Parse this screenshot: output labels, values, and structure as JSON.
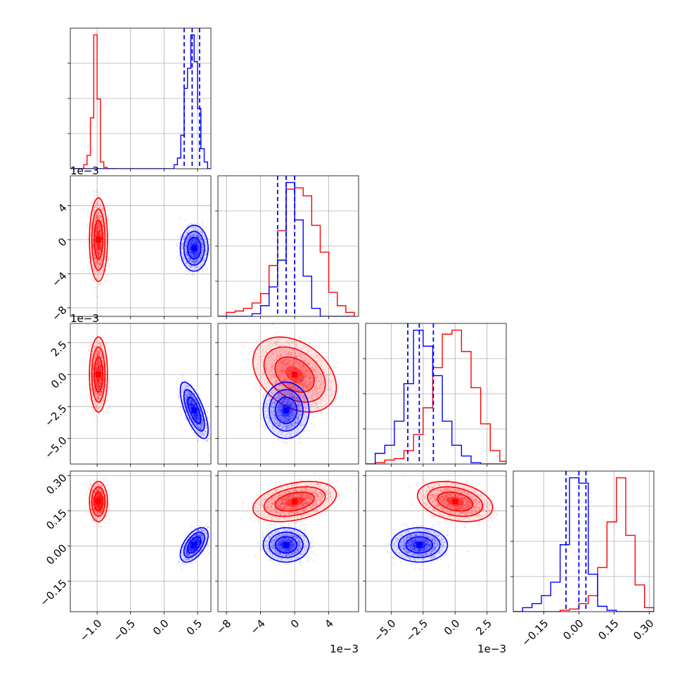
{
  "chart_data": {
    "type": "scatter",
    "subtype": "corner-plot",
    "title": "",
    "grid": true,
    "legend": "none",
    "colors": {
      "series_a": "#ff0000",
      "series_b": "#0000ff"
    },
    "parameters": [
      {
        "key": "p1",
        "range": [
          -1.4,
          0.7
        ],
        "ticks": [
          -1.0,
          -0.5,
          0.0,
          0.5
        ],
        "tick_labels": [
          "−1.0",
          "−0.5",
          "0.0",
          "0.5"
        ],
        "offset_label": ""
      },
      {
        "key": "p2",
        "range": [
          -9.0,
          7.5
        ],
        "ticks": [
          -8,
          -4,
          0,
          4
        ],
        "tick_labels": [
          "−8",
          "−4",
          "0",
          "4"
        ],
        "offset_label": "1e−3"
      },
      {
        "key": "p3",
        "range": [
          -7.0,
          4.0
        ],
        "ticks": [
          -5.0,
          -2.5,
          0.0,
          2.5
        ],
        "tick_labels": [
          "−5.0",
          "−2.5",
          "0.0",
          "2.5"
        ],
        "offset_label": "1e−3"
      },
      {
        "key": "p4",
        "range": [
          -0.28,
          0.32
        ],
        "ticks": [
          -0.15,
          0.0,
          0.15,
          0.3
        ],
        "tick_labels": [
          "−0.15",
          "0.00",
          "0.15",
          "0.30"
        ],
        "offset_label": ""
      }
    ],
    "series": [
      {
        "color": "#ff0000",
        "mean": [
          -0.98,
          0.0,
          0.0,
          0.19
        ],
        "sd": [
          0.055,
          2.0,
          1.2,
          0.035
        ],
        "corr": {
          "1-2": 0.0,
          "1-3": 0.0,
          "1-4": 0.0,
          "2-3": -0.35,
          "2-4": 0.35,
          "3-4": -0.3
        },
        "hist": [
          {
            "edges": [
              -1.4,
              -1.35,
              -1.3,
              -1.25,
              -1.2,
              -1.15,
              -1.1,
              -1.05,
              -1.0,
              -0.95,
              -0.9,
              -0.85,
              -0.8,
              -0.75,
              -0.7
            ],
            "counts": [
              0,
              0,
              0,
              0,
              3,
              10,
              38,
              100,
              52,
              5,
              1,
              0,
              0,
              0
            ]
          },
          {
            "edges": [
              -9,
              -8,
              -7,
              -6,
              -5,
              -4,
              -3,
              -2,
              -1,
              0,
              1,
              2,
              3,
              4,
              5,
              6,
              7
            ],
            "counts": [
              0,
              3,
              4,
              6,
              10,
              17,
              38,
              64,
              95,
              96,
              90,
              68,
              48,
              18,
              8,
              3
            ]
          },
          {
            "edges": [
              -7,
              -6.25,
              -5.5,
              -4.75,
              -4,
              -3.25,
              -2.5,
              -1.75,
              -1,
              -0.25,
              0.5,
              1.25,
              2,
              2.75,
              3.5,
              4
            ],
            "counts": [
              0,
              1,
              3,
              4,
              10,
              22,
              42,
              72,
              97,
              100,
              84,
              57,
              30,
              10,
              2
            ]
          },
          {
            "edges": [
              -0.28,
              -0.24,
              -0.2,
              -0.16,
              -0.12,
              -0.08,
              -0.04,
              0,
              0.04,
              0.08,
              0.12,
              0.16,
              0.2,
              0.24,
              0.28,
              0.32
            ],
            "counts": [
              0,
              0,
              0,
              0,
              0,
              1,
              2,
              6,
              12,
              33,
              67,
              100,
              57,
              20,
              3
            ]
          }
        ]
      },
      {
        "color": "#0000ff",
        "mean": [
          0.45,
          -1.0,
          -2.8,
          0.005
        ],
        "sd": [
          0.085,
          1.1,
          0.9,
          0.03
        ],
        "corr": {
          "1-2": 0.0,
          "1-3": -0.7,
          "1-4": 0.55,
          "2-3": 0.0,
          "2-4": 0.0,
          "3-4": 0.0
        },
        "hist": [
          {
            "edges": [
              -1.4,
              -1.35,
              -1.3,
              -1.25,
              -1.2,
              -1.15,
              -1.1,
              -1.05,
              -1.0,
              -0.95,
              -0.9,
              -0.85,
              -0.8,
              -0.75,
              -0.7,
              -0.65,
              -0.6,
              -0.55,
              -0.5,
              -0.45,
              -0.4,
              -0.35,
              -0.3,
              -0.25,
              -0.2,
              -0.15,
              -0.1,
              -0.05,
              0,
              0.05,
              0.1,
              0.15,
              0.2,
              0.25,
              0.3,
              0.35,
              0.4,
              0.45,
              0.5,
              0.55,
              0.6,
              0.65,
              0.7
            ],
            "counts": [
              0,
              0,
              0,
              0,
              0,
              0,
              0,
              0,
              0,
              0,
              0,
              0,
              0,
              0,
              0,
              0,
              0,
              0,
              0,
              0,
              0,
              0,
              0,
              0,
              0,
              0,
              0,
              0,
              0,
              0,
              0,
              3,
              8,
              25,
              60,
              75,
              100,
              80,
              45,
              15,
              5,
              0
            ]
          },
          {
            "edges": [
              -9,
              -8,
              -7,
              -6,
              -5,
              -4,
              -3,
              -2,
              -1,
              0,
              1,
              2,
              3,
              4,
              5,
              6,
              7
            ],
            "counts": [
              0,
              0,
              0,
              0,
              2,
              8,
              22,
              42,
              100,
              72,
              30,
              6,
              0,
              0,
              0,
              0
            ]
          },
          {
            "edges": [
              -7,
              -6.25,
              -5.5,
              -4.75,
              -4,
              -3.25,
              -2.5,
              -1.75,
              -1,
              -0.25,
              0.5,
              1.25,
              2,
              2.75,
              3.5,
              4
            ],
            "counts": [
              0,
              8,
              14,
              32,
              60,
              100,
              88,
              66,
              32,
              14,
              6,
              1,
              0,
              0,
              0
            ]
          },
          {
            "edges": [
              -0.28,
              -0.24,
              -0.2,
              -0.16,
              -0.12,
              -0.08,
              -0.04,
              0,
              0.04,
              0.08,
              0.12,
              0.16,
              0.2,
              0.24,
              0.28,
              0.32
            ],
            "counts": [
              0,
              3,
              6,
              12,
              22,
              50,
              100,
              96,
              28,
              4,
              1,
              0,
              0,
              0,
              0
            ]
          }
        ],
        "quantiles": [
          [
            0.3,
            0.42,
            0.53
          ],
          [
            -2.0,
            -1.0,
            0.0
          ],
          [
            -3.7,
            -2.8,
            -1.7
          ],
          [
            -0.055,
            0.0,
            0.03
          ]
        ]
      }
    ]
  }
}
